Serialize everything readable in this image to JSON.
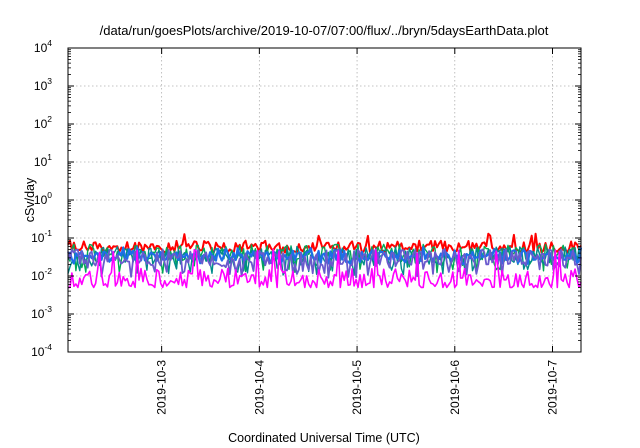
{
  "chart_data": {
    "type": "line",
    "title": "/data/run/goesPlots/archive/2019-10-07/07:00/flux/../bryn/5daysEarthData.plot",
    "xlabel": "Coordinated Universal Time (UTC)",
    "ylabel": "cSv/day",
    "yscale": "log",
    "ylim_exponent": [
      -4,
      4
    ],
    "y_ticks": [
      {
        "base": "10",
        "exp": "-4"
      },
      {
        "base": "10",
        "exp": "-3"
      },
      {
        "base": "10",
        "exp": "-2"
      },
      {
        "base": "10",
        "exp": "-1"
      },
      {
        "base": "10",
        "exp": "0"
      },
      {
        "base": "10",
        "exp": "1"
      },
      {
        "base": "10",
        "exp": "2"
      },
      {
        "base": "10",
        "exp": "3"
      },
      {
        "base": "10",
        "exp": "4"
      }
    ],
    "xlim": [
      "2019-10-02T01:00",
      "2019-10-07T07:00"
    ],
    "x_ticks": [
      "2019-10-3",
      "2019-10-4",
      "2019-10-5",
      "2019-10-6",
      "2019-10-7"
    ],
    "grid": true,
    "series": [
      {
        "color": "#ff0000",
        "typical": 0.06,
        "min": 0.04,
        "max": 0.13,
        "width": 2.0
      },
      {
        "color": "#00aa55",
        "typical": 0.04,
        "min": 0.012,
        "max": 0.07,
        "width": 1.4
      },
      {
        "color": "#008b8b",
        "typical": 0.035,
        "min": 0.01,
        "max": 0.06,
        "width": 1.4
      },
      {
        "color": "#1e6ee8",
        "typical": 0.035,
        "min": 0.02,
        "max": 0.06,
        "width": 2.2
      },
      {
        "color": "#6a5acd",
        "typical": 0.03,
        "min": 0.009,
        "max": 0.05,
        "width": 1.8
      },
      {
        "color": "#ff00ff",
        "typical": 0.008,
        "min": 0.005,
        "max": 0.05,
        "width": 1.6
      }
    ]
  }
}
